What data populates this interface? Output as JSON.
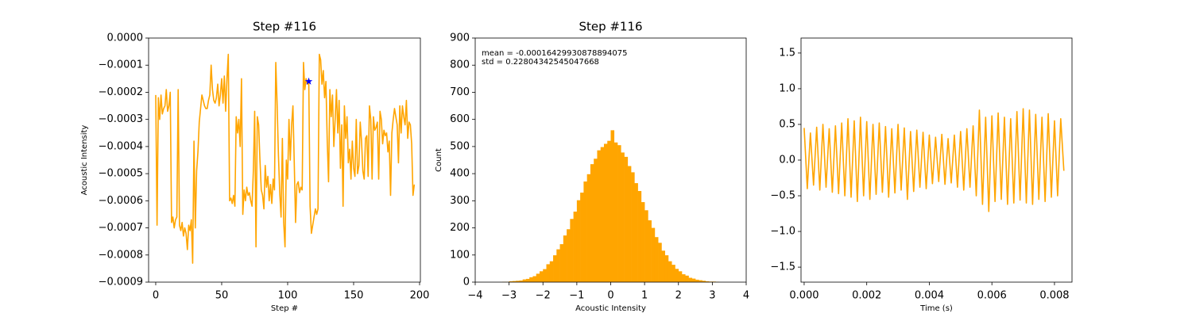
{
  "chart_data": [
    {
      "type": "line",
      "title": "Step #116",
      "xlabel": "Step #",
      "ylabel": "Acoustic Intensity",
      "color": "#ffa500",
      "x": [
        0,
        1,
        2,
        3,
        4,
        5,
        6,
        7,
        8,
        9,
        10,
        11,
        12,
        13,
        14,
        15,
        16,
        17,
        18,
        19,
        20,
        21,
        22,
        23,
        24,
        25,
        26,
        27,
        28,
        29,
        30,
        31,
        32,
        33,
        34,
        35,
        36,
        37,
        38,
        39,
        40,
        41,
        42,
        43,
        44,
        45,
        46,
        47,
        48,
        49,
        50,
        51,
        52,
        53,
        54,
        55,
        56,
        57,
        58,
        59,
        60,
        61,
        62,
        63,
        64,
        65,
        66,
        67,
        68,
        69,
        70,
        71,
        72,
        73,
        74,
        75,
        76,
        77,
        78,
        79,
        80,
        81,
        82,
        83,
        84,
        85,
        86,
        87,
        88,
        89,
        90,
        91,
        92,
        93,
        94,
        95,
        96,
        97,
        98,
        99,
        100,
        101,
        102,
        103,
        104,
        105,
        106,
        107,
        108,
        109,
        110,
        111,
        112,
        113,
        114,
        115,
        116,
        117,
        118,
        119,
        120,
        121,
        122,
        123,
        124,
        125,
        126,
        127,
        128,
        129,
        130,
        131,
        132,
        133,
        134,
        135,
        136,
        137,
        138,
        139,
        140,
        141,
        142,
        143,
        144,
        145,
        146,
        147,
        148,
        149,
        150,
        151,
        152,
        153,
        154,
        155,
        156,
        157,
        158,
        159,
        160,
        161,
        162,
        163,
        164,
        165,
        166,
        167,
        168,
        169,
        170,
        171,
        172,
        173,
        174,
        175,
        176,
        177,
        178,
        179,
        180,
        181,
        182,
        183,
        184,
        185,
        186,
        187,
        188,
        189,
        190,
        191,
        192,
        193,
        194,
        195,
        196
      ],
      "values": [
        -0.00021,
        -0.00069,
        -0.00022,
        -0.0003,
        -0.00021,
        -0.00028,
        -0.00026,
        -0.00025,
        -0.00019,
        -0.00027,
        -0.00025,
        -0.0002,
        -0.00068,
        -0.00066,
        -0.0007,
        -0.00067,
        -0.00066,
        -0.00019,
        -0.00069,
        -0.00071,
        -0.00068,
        -0.00073,
        -0.0007,
        -0.00072,
        -0.00078,
        -0.00069,
        -0.00071,
        -0.00067,
        -0.00083,
        -0.00038,
        -0.0007,
        -0.00049,
        -0.00042,
        -0.00031,
        -0.00026,
        -0.00021,
        -0.00023,
        -0.00025,
        -0.00026,
        -0.00026,
        -0.00023,
        -0.00021,
        -0.0001,
        -0.00019,
        -0.00023,
        -0.00024,
        -0.00022,
        -0.00017,
        -0.00025,
        -0.00021,
        -0.00015,
        -0.00024,
        -0.00014,
        -0.00027,
        -0.00015,
        -6e-05,
        -0.0006,
        -0.00059,
        -0.00061,
        -0.00058,
        -0.00062,
        -0.00029,
        -0.00035,
        -0.0003,
        -0.0004,
        -0.00015,
        -0.00065,
        -0.00056,
        -0.0006,
        -0.00055,
        -0.00058,
        -0.00057,
        -0.0006,
        -0.00062,
        -0.00049,
        -0.00027,
        -0.00077,
        -0.00029,
        -0.00032,
        -0.00045,
        -0.00056,
        -0.00058,
        -0.00063,
        -0.00047,
        -0.00055,
        -0.00051,
        -0.0006,
        -0.00054,
        -0.00061,
        -0.00052,
        -0.00056,
        -9e-05,
        -0.00024,
        -0.00043,
        -0.00057,
        -0.00066,
        -0.00037,
        -0.00068,
        -0.00077,
        -0.00045,
        -0.00052,
        -0.0003,
        -0.00045,
        -0.00032,
        -0.00025,
        -0.00046,
        -0.00068,
        -0.00054,
        -0.00053,
        -0.00057,
        -0.00055,
        -0.00056,
        -9e-05,
        -0.00019,
        -0.00015,
        -0.00017,
        -0.00016,
        -0.00062,
        -0.00072,
        -0.00069,
        -0.00066,
        -0.00063,
        -0.00065,
        -0.00063,
        -6e-05,
        -8e-05,
        -0.00017,
        -0.00012,
        -0.00022,
        -0.00016,
        -0.00038,
        -0.00053,
        -0.00019,
        -0.00029,
        -0.00021,
        -0.0004,
        -0.0003,
        -0.00019,
        -0.00035,
        -0.00023,
        -0.00048,
        -0.00032,
        -0.00062,
        -0.00025,
        -0.00037,
        -0.00029,
        -0.00046,
        -0.00041,
        -0.00052,
        -0.00038,
        -0.00048,
        -0.00051,
        -0.0003,
        -0.0005,
        -0.00047,
        -0.00031,
        -0.00038,
        -0.00049,
        -0.00052,
        -0.00037,
        -0.00036,
        -0.00051,
        -0.00025,
        -0.0003,
        -0.00052,
        -0.00029,
        -0.00034,
        -0.00033,
        -0.00031,
        -0.00052,
        -0.00027,
        -0.0003,
        -0.00039,
        -0.00034,
        -0.00036,
        -0.00035,
        -0.00042,
        -0.00038,
        -0.00058,
        -0.00035,
        -0.0003,
        -0.00026,
        -0.00029,
        -0.00032,
        -0.00046,
        -0.00025,
        -0.00035,
        -0.00025,
        -0.00029,
        -0.00032,
        -0.00023,
        -0.00037,
        -0.00031,
        -0.00032,
        -0.00039,
        -0.00058,
        -0.00054
      ],
      "marker": {
        "x": 116,
        "y": -0.00016,
        "color": "#0000ff"
      },
      "xlim": [
        -5.4,
        200.6
      ],
      "xticks": [
        0,
        50,
        100,
        150,
        200
      ],
      "ylim": [
        -0.0009,
        0
      ],
      "yticks": [
        {
          "value": 0,
          "label": "0.0000"
        },
        {
          "value": -0.0001,
          "label": "−0.0001"
        },
        {
          "value": -0.0002,
          "label": "−0.0002"
        },
        {
          "value": -0.0003,
          "label": "−0.0003"
        },
        {
          "value": -0.0004,
          "label": "−0.0004"
        },
        {
          "value": -0.0005,
          "label": "−0.0005"
        },
        {
          "value": -0.0006,
          "label": "−0.0006"
        },
        {
          "value": -0.0007,
          "label": "−0.0007"
        },
        {
          "value": -0.0008,
          "label": "−0.0008"
        },
        {
          "value": -0.0009,
          "label": "−0.0009"
        }
      ]
    },
    {
      "type": "histogram",
      "title": "Step #116",
      "xlabel": "Acoustic Intensity",
      "ylabel": "Count",
      "color": "#ffa500",
      "annotations": [
        "mean = -0.00016429930878894075",
        "std = 0.22804342545047668"
      ],
      "bins": [
        -3.2,
        -3.1,
        -3.0,
        -2.9,
        -2.8,
        -2.7,
        -2.6,
        -2.5,
        -2.4,
        -2.3,
        -2.2,
        -2.1,
        -2.0,
        -1.9,
        -1.8,
        -1.7,
        -1.6,
        -1.5,
        -1.4,
        -1.3,
        -1.2,
        -1.1,
        -1.0,
        -0.9,
        -0.8,
        -0.7,
        -0.6,
        -0.5,
        -0.4,
        -0.3,
        -0.2,
        -0.1,
        0,
        0.1,
        0.2,
        0.3,
        0.4,
        0.5,
        0.6,
        0.7,
        0.8,
        0.9,
        1.0,
        1.1,
        1.2,
        1.3,
        1.4,
        1.5,
        1.6,
        1.7,
        1.8,
        1.9,
        2.0,
        2.1,
        2.2,
        2.3,
        2.4,
        2.5,
        2.6,
        2.7,
        2.8,
        2.9,
        3.0,
        3.1,
        3.2
      ],
      "values": [
        1,
        1,
        3,
        4,
        5,
        6,
        10,
        12,
        18,
        22,
        31,
        40,
        48,
        66,
        77,
        99,
        121,
        140,
        172,
        195,
        233,
        260,
        302,
        330,
        371,
        398,
        435,
        455,
        486,
        498,
        510,
        521,
        560,
        515,
        505,
        478,
        462,
        428,
        405,
        365,
        336,
        295,
        265,
        228,
        200,
        166,
        145,
        116,
        99,
        77,
        64,
        49,
        40,
        29,
        24,
        16,
        13,
        9,
        7,
        5,
        3,
        2,
        2,
        1
      ],
      "xlim": [
        -4,
        4
      ],
      "xticks": [
        {
          "value": -4,
          "label": "−4"
        },
        {
          "value": -3,
          "label": "−3"
        },
        {
          "value": -2,
          "label": "−2"
        },
        {
          "value": -1,
          "label": "−1"
        },
        0,
        1,
        2,
        3,
        4
      ],
      "ylim": [
        0,
        900
      ],
      "yticks": [
        0,
        100,
        200,
        300,
        400,
        500,
        600,
        700,
        800,
        900
      ]
    },
    {
      "type": "line",
      "xlabel": "Time (s)",
      "color": "#ffa500",
      "x": [
        0,
        0.0001,
        0.0002,
        0.0003,
        0.0004,
        0.0005,
        0.0006,
        0.0007,
        0.0008,
        0.0009,
        0.001,
        0.0011,
        0.0012,
        0.0013,
        0.0014,
        0.0015,
        0.0016,
        0.0017,
        0.0018,
        0.0019,
        0.002,
        0.0021,
        0.0022,
        0.0023,
        0.0024,
        0.0025,
        0.0026,
        0.0027,
        0.0028,
        0.0029,
        0.003,
        0.0031,
        0.0032,
        0.0033,
        0.0034,
        0.0035,
        0.0036,
        0.0037,
        0.0038,
        0.0039,
        0.004,
        0.0041,
        0.0042,
        0.0043,
        0.0044,
        0.0045,
        0.0046,
        0.0047,
        0.0048,
        0.0049,
        0.005,
        0.0051,
        0.0052,
        0.0053,
        0.0054,
        0.0055,
        0.0056,
        0.0057,
        0.0058,
        0.0059,
        0.006,
        0.0061,
        0.0062,
        0.0063,
        0.0064,
        0.0065,
        0.0066,
        0.0067,
        0.0068,
        0.0069,
        0.007,
        0.0071,
        0.0072,
        0.0073,
        0.0074,
        0.0075,
        0.0076,
        0.0077,
        0.0078,
        0.0079,
        0.008,
        0.0081,
        0.0082,
        0.0083
      ],
      "values": [
        0.45,
        -0.4,
        0.38,
        -0.35,
        0.46,
        -0.42,
        0.5,
        -0.38,
        0.44,
        -0.45,
        0.48,
        -0.47,
        0.52,
        -0.5,
        0.58,
        -0.52,
        0.55,
        -0.58,
        0.6,
        -0.5,
        0.54,
        -0.55,
        0.5,
        -0.48,
        0.52,
        -0.45,
        0.47,
        -0.52,
        0.44,
        -0.46,
        0.5,
        -0.42,
        0.45,
        -0.55,
        0.4,
        -0.44,
        0.42,
        -0.38,
        0.39,
        -0.4,
        0.35,
        -0.33,
        0.32,
        -0.3,
        0.36,
        -0.34,
        0.3,
        -0.32,
        0.35,
        -0.38,
        0.4,
        -0.42,
        0.44,
        -0.38,
        0.48,
        -0.5,
        0.7,
        -0.62,
        0.6,
        -0.72,
        0.62,
        -0.58,
        0.66,
        -0.55,
        0.6,
        -0.62,
        0.58,
        -0.6,
        0.68,
        -0.56,
        0.72,
        -0.6,
        0.7,
        -0.62,
        0.64,
        -0.55,
        0.6,
        -0.58,
        0.65,
        -0.52,
        0.55,
        -0.5,
        0.58,
        -0.15
      ],
      "xlim": [
        -0.0001,
        0.00856
      ],
      "xticks": [
        {
          "value": 0,
          "label": "0.000"
        },
        0.002,
        0.004,
        0.006,
        0.008
      ],
      "ylim": [
        -1.71,
        1.71
      ],
      "yticks": [
        {
          "value": -1.5,
          "label": "−1.5"
        },
        {
          "value": -1,
          "label": "−1.0"
        },
        {
          "value": -0.5,
          "label": "−0.5"
        },
        {
          "value": 0,
          "label": "0.0"
        },
        0.5,
        {
          "value": 1,
          "label": "1.0"
        },
        1.5
      ]
    }
  ]
}
